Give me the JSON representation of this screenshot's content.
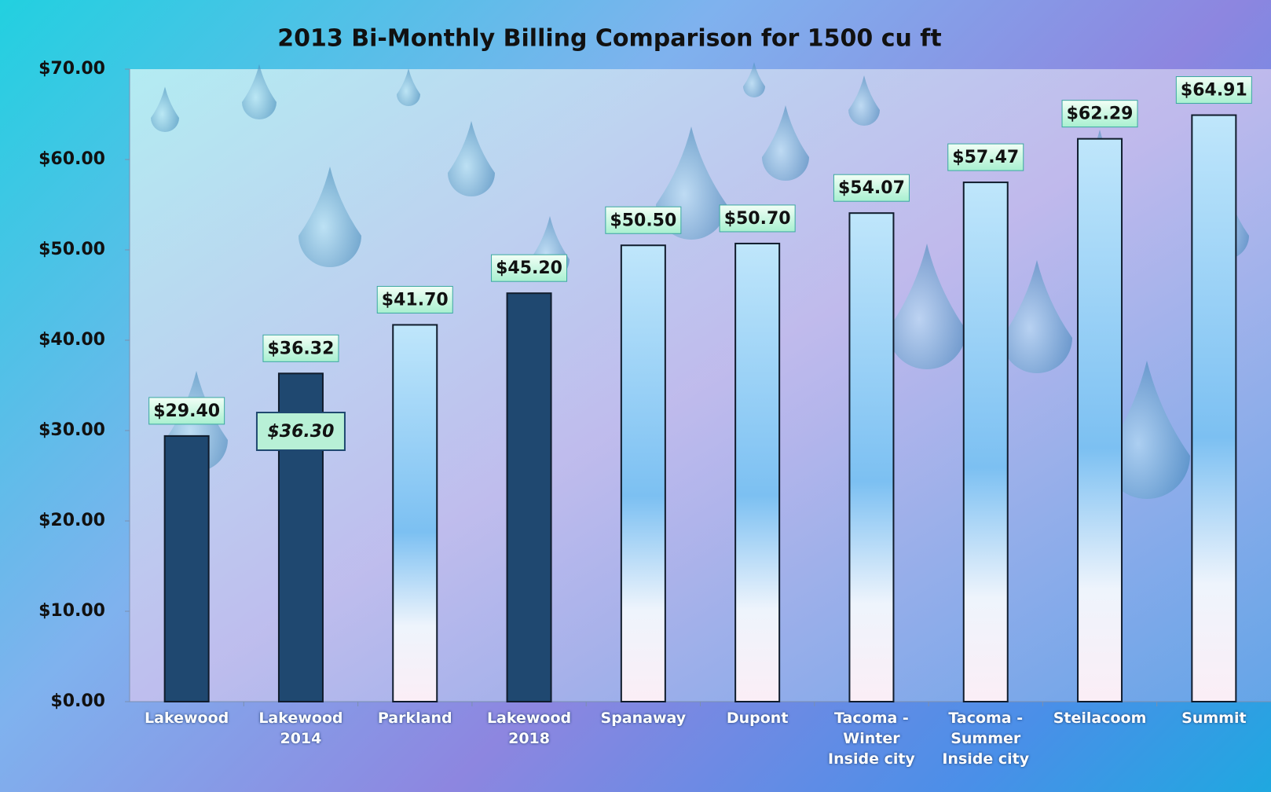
{
  "chart_data": {
    "type": "bar",
    "title": "2013 Bi-Monthly Billing Comparison for 1500 cu ft",
    "categories": [
      "Lakewood",
      "Lakewood 2014",
      "Parkland",
      "Lakewood 2018",
      "Spanaway",
      "Dupont",
      "Tacoma - Winter Inside city",
      "Tacoma - Summer Inside city",
      "Steilacoom",
      "Summit"
    ],
    "values": [
      29.4,
      36.32,
      41.7,
      45.2,
      50.5,
      50.7,
      54.07,
      57.47,
      62.29,
      64.91
    ],
    "value_labels": [
      "$29.40",
      "$36.32",
      "$41.70",
      "$45.20",
      "$50.50",
      "$50.70",
      "$54.07",
      "$57.47",
      "$62.29",
      "$64.91"
    ],
    "colors": [
      "#1f4870",
      "#1f4870",
      "light",
      "#1f4870",
      "light",
      "light",
      "light",
      "light",
      "light",
      "light"
    ],
    "annotation": "$36.30",
    "ylim": [
      0,
      70
    ],
    "yticks": [
      {
        "value": 0,
        "label": "$0.00"
      },
      {
        "value": 10,
        "label": "$10.00"
      },
      {
        "value": 20,
        "label": "$20.00"
      },
      {
        "value": 30,
        "label": "$30.00"
      },
      {
        "value": 40,
        "label": "$40.00"
      },
      {
        "value": 50,
        "label": "$50.00"
      },
      {
        "value": 60,
        "label": "$60.00"
      },
      {
        "value": 70,
        "label": "$70.00"
      }
    ]
  }
}
